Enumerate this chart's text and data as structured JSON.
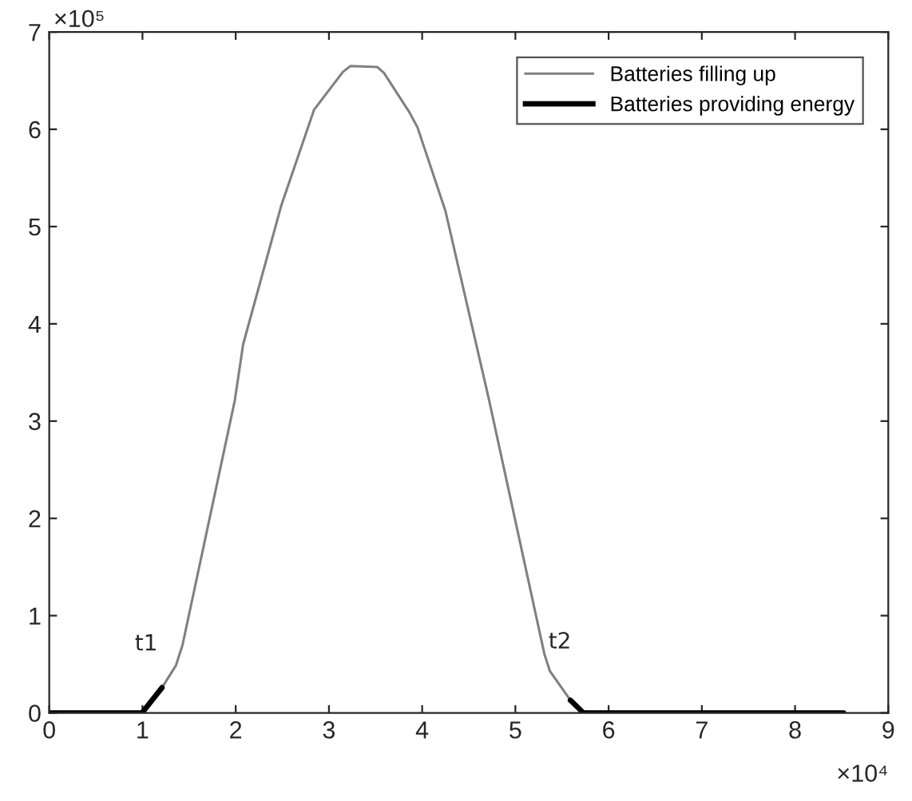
{
  "chart_data": {
    "type": "line",
    "xlim": [
      0,
      9
    ],
    "ylim": [
      0,
      7
    ],
    "xticks": [
      0,
      1,
      2,
      3,
      4,
      5,
      6,
      7,
      8,
      9
    ],
    "yticks": [
      0,
      1,
      2,
      3,
      4,
      5,
      6,
      7
    ],
    "series": [
      {
        "name": "Batteries filling up",
        "color": "#808080",
        "x": [
          1.21,
          1.36,
          1.43,
          1.99,
          2.08,
          2.49,
          2.84,
          3.15,
          3.23,
          3.52,
          3.59,
          3.86,
          3.95,
          4.25,
          4.71,
          5.31,
          5.37,
          5.59
        ],
        "values": [
          0.26,
          0.49,
          0.7,
          3.21,
          3.79,
          5.22,
          6.2,
          6.59,
          6.65,
          6.64,
          6.58,
          6.18,
          6.02,
          5.16,
          3.25,
          0.61,
          0.43,
          0.13
        ]
      },
      {
        "name": "Batteries providing energy",
        "color": "#000000",
        "x": [
          0,
          0.995,
          1.21,
          3.4,
          5.59,
          5.73,
          8.52
        ],
        "values": [
          0,
          0,
          0.26,
          null,
          0.13,
          0,
          0
        ]
      }
    ],
    "legend": "top right",
    "annotations": [
      "×10⁵",
      "×10⁴",
      "t1",
      "t2"
    ]
  }
}
